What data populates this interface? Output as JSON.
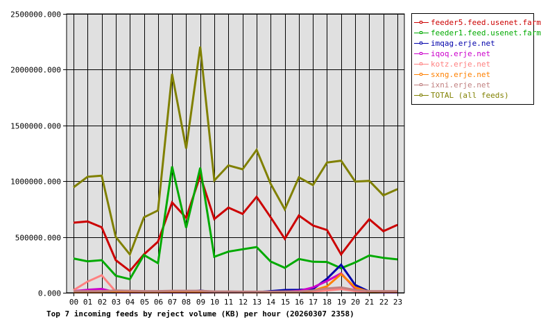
{
  "chart_data": {
    "type": "line",
    "title": "Top 7 incoming feeds by reject volume (KB) per hour (20260307 2358)",
    "xlabel": "",
    "ylabel": "",
    "ylim": [
      0,
      2500000
    ],
    "grid": true,
    "legend_position": "right",
    "y_ticks": [
      "0.000",
      "500000.000",
      "1000000.000",
      "1500000.000",
      "2000000.000",
      "2500000.000"
    ],
    "y_tick_values": [
      0,
      500000,
      1000000,
      1500000,
      2000000,
      2500000
    ],
    "categories": [
      "00",
      "01",
      "02",
      "03",
      "04",
      "05",
      "06",
      "07",
      "08",
      "09",
      "10",
      "11",
      "12",
      "13",
      "14",
      "15",
      "16",
      "17",
      "18",
      "19",
      "20",
      "21",
      "22",
      "23"
    ],
    "series": [
      {
        "name": "feeder5.feed.usenet.farm",
        "color": "#cc0000",
        "values": [
          628000,
          639000,
          587000,
          292000,
          195000,
          344000,
          458000,
          810000,
          672000,
          1049000,
          661000,
          763000,
          707000,
          860000,
          676000,
          484000,
          692000,
          603000,
          562000,
          344000,
          510000,
          659000,
          552000,
          609000
        ]
      },
      {
        "name": "feeder1.feed.usenet.farm",
        "color": "#00aa00",
        "values": [
          307000,
          282000,
          292000,
          153000,
          122000,
          338000,
          265000,
          1132000,
          583000,
          1121000,
          323000,
          369000,
          390000,
          410000,
          280000,
          224000,
          303000,
          278000,
          276000,
          220000,
          272000,
          334000,
          313000,
          299000
        ]
      },
      {
        "name": "imqag.erje.net",
        "color": "#0000aa",
        "values": [
          5000,
          5000,
          5000,
          5000,
          5000,
          5000,
          5000,
          5000,
          5000,
          20000,
          5000,
          5000,
          5000,
          5000,
          15000,
          25000,
          27000,
          33000,
          126000,
          251000,
          70000,
          10000,
          5000,
          5000
        ]
      },
      {
        "name": "iqoq.erje.net",
        "color": "#cc00cc",
        "values": [
          15000,
          27000,
          35000,
          5000,
          5000,
          5000,
          5000,
          5000,
          5000,
          5000,
          5000,
          5000,
          5000,
          5000,
          5000,
          10000,
          17000,
          48000,
          106000,
          174000,
          37000,
          8000,
          5000,
          5000
        ]
      },
      {
        "name": "kotz.erje.net",
        "color": "#ff8080",
        "values": [
          23000,
          100000,
          157000,
          10000,
          8000,
          8000,
          8000,
          8000,
          8000,
          8000,
          8000,
          8000,
          5000,
          5000,
          5000,
          5000,
          5000,
          10000,
          20000,
          33000,
          15000,
          8000,
          8000,
          8000
        ]
      },
      {
        "name": "sxng.erje.net",
        "color": "#ff8000",
        "values": [
          5000,
          5000,
          5000,
          10000,
          8000,
          5000,
          5000,
          8000,
          8000,
          8000,
          5000,
          5000,
          5000,
          5000,
          5000,
          5000,
          5000,
          19000,
          58000,
          168000,
          48000,
          8000,
          8000,
          8000
        ]
      },
      {
        "name": "ixni.erje.net",
        "color": "#c08080",
        "values": [
          15000,
          15000,
          15000,
          20000,
          18000,
          15000,
          15000,
          18000,
          18000,
          18000,
          12000,
          12000,
          10000,
          10000,
          10000,
          12000,
          12000,
          20000,
          39000,
          48000,
          25000,
          15000,
          15000,
          15000
        ]
      },
      {
        "name": "TOTAL (all feeds)",
        "color": "#808000",
        "values": [
          945000,
          1040000,
          1050000,
          500000,
          344000,
          676000,
          738000,
          1961000,
          1293000,
          2206000,
          1007000,
          1142000,
          1107000,
          1281000,
          976000,
          748000,
          1034000,
          966000,
          1167000,
          1184000,
          997000,
          1003000,
          873000,
          929000
        ]
      }
    ]
  },
  "legend": {
    "items": [
      {
        "label": "feeder5.feed.usenet.farm",
        "color": "#cc0000"
      },
      {
        "label": "feeder1.feed.usenet.farm",
        "color": "#00aa00"
      },
      {
        "label": "imqag.erje.net",
        "color": "#0000aa"
      },
      {
        "label": "iqoq.erje.net",
        "color": "#cc00cc"
      },
      {
        "label": "kotz.erje.net",
        "color": "#ff8080"
      },
      {
        "label": "sxng.erje.net",
        "color": "#ff8000"
      },
      {
        "label": "ixni.erje.net",
        "color": "#c08080"
      },
      {
        "label": "TOTAL (all feeds)",
        "color": "#808000"
      }
    ]
  },
  "colors": {
    "plot_background": "#e0e0e0",
    "grid": "#000000",
    "page_background": "#ffffff"
  }
}
